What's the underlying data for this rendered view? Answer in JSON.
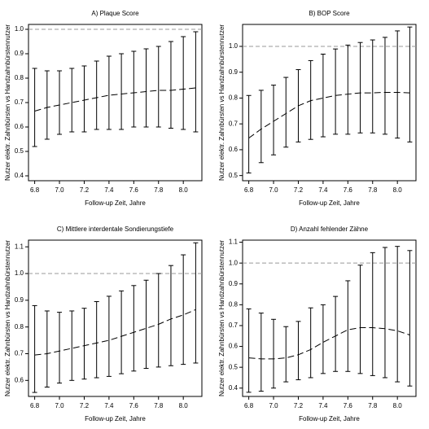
{
  "chart_data": [
    {
      "type": "line",
      "title": "A) Plaque Score",
      "xlabel": "Follow-up Zeit, Jahre",
      "ylabel": "Nutzer elektr. Zahnbürsten vs Handzahnbürstennutzer",
      "x": [
        6.8,
        6.9,
        7.0,
        7.1,
        7.2,
        7.3,
        7.4,
        7.5,
        7.6,
        7.7,
        7.8,
        7.9,
        8.0,
        8.1
      ],
      "values": [
        0.665,
        0.68,
        0.69,
        0.7,
        0.71,
        0.72,
        0.73,
        0.735,
        0.74,
        0.745,
        0.75,
        0.75,
        0.755,
        0.76
      ],
      "lower": [
        0.52,
        0.55,
        0.57,
        0.58,
        0.58,
        0.59,
        0.59,
        0.59,
        0.6,
        0.6,
        0.6,
        0.595,
        0.59,
        0.58
      ],
      "upper": [
        0.84,
        0.83,
        0.83,
        0.84,
        0.85,
        0.87,
        0.89,
        0.9,
        0.91,
        0.92,
        0.93,
        0.95,
        0.97,
        0.99
      ],
      "reference_line": 1,
      "color": "#000000",
      "xlim": [
        6.75,
        8.15
      ],
      "xticks": [
        6.8,
        {
          "value": 7,
          "label": "7.0"
        },
        7.2,
        7.4,
        7.6,
        7.8,
        {
          "value": 8,
          "label": "8.0"
        }
      ],
      "ylim": [
        0.38,
        1.02
      ],
      "yticks": [
        0.4,
        0.5,
        0.6,
        0.7,
        0.8,
        0.9,
        {
          "value": 1,
          "label": "1.0"
        }
      ]
    },
    {
      "type": "line",
      "title": "B) BOP Score",
      "xlabel": "Follow-up Zeit, Jahre",
      "ylabel": "Nutzer elektr. Zahnbürsten vs Handzahnbürstennutzer",
      "x": [
        6.8,
        6.9,
        7.0,
        7.1,
        7.2,
        7.3,
        7.4,
        7.5,
        7.6,
        7.7,
        7.8,
        7.9,
        8.0,
        8.1
      ],
      "values": [
        0.645,
        0.68,
        0.71,
        0.74,
        0.77,
        0.79,
        0.8,
        0.81,
        0.815,
        0.82,
        0.82,
        0.822,
        0.822,
        0.82
      ],
      "lower": [
        0.51,
        0.55,
        0.58,
        0.61,
        0.63,
        0.64,
        0.65,
        0.66,
        0.66,
        0.665,
        0.665,
        0.66,
        0.645,
        0.63
      ],
      "upper": [
        0.81,
        0.83,
        0.85,
        0.88,
        0.91,
        0.945,
        0.97,
        0.99,
        1.005,
        1.015,
        1.025,
        1.035,
        1.06,
        1.075
      ],
      "reference_line": 1,
      "color": "#000000",
      "xlim": [
        6.75,
        8.15
      ],
      "xticks": [
        6.8,
        {
          "value": 7,
          "label": "7.0"
        },
        7.2,
        7.4,
        7.6,
        7.8,
        {
          "value": 8,
          "label": "8.0"
        }
      ],
      "ylim": [
        0.48,
        1.085
      ],
      "yticks": [
        0.5,
        0.6,
        0.7,
        0.8,
        0.9,
        {
          "value": 1,
          "label": "1.0"
        }
      ]
    },
    {
      "type": "line",
      "title": "C) Mittlere interdentale Sondierungstiefe",
      "xlabel": "Follow-up Zeit, Jahre",
      "ylabel": "Nutzer elektr. Zahnbürsten vs Handzahnbürstennutzer",
      "x": [
        6.8,
        6.9,
        7.0,
        7.1,
        7.2,
        7.3,
        7.4,
        7.5,
        7.6,
        7.7,
        7.8,
        7.9,
        8.0,
        8.1
      ],
      "values": [
        0.695,
        0.7,
        0.71,
        0.72,
        0.73,
        0.74,
        0.75,
        0.765,
        0.78,
        0.795,
        0.81,
        0.83,
        0.845,
        0.865
      ],
      "lower": [
        0.555,
        0.575,
        0.59,
        0.6,
        0.605,
        0.61,
        0.615,
        0.625,
        0.635,
        0.645,
        0.65,
        0.655,
        0.66,
        0.665
      ],
      "upper": [
        0.88,
        0.86,
        0.855,
        0.86,
        0.87,
        0.895,
        0.915,
        0.935,
        0.955,
        0.975,
        1.0,
        1.03,
        1.07,
        1.115
      ],
      "reference_line": 1,
      "color": "#000000",
      "xlim": [
        6.75,
        8.15
      ],
      "xticks": [
        6.8,
        {
          "value": 7,
          "label": "7.0"
        },
        7.2,
        7.4,
        7.6,
        7.8,
        {
          "value": 8,
          "label": "8.0"
        }
      ],
      "ylim": [
        0.54,
        1.125
      ],
      "yticks": [
        0.6,
        0.7,
        0.8,
        0.9,
        {
          "value": 1,
          "label": "1.0"
        },
        1.1
      ]
    },
    {
      "type": "line",
      "title": "D) Anzahl fehlender Zähne",
      "xlabel": "Follow-up Zeit, Jahre",
      "ylabel": "Nutzer elektr. Zahnbürsten vs Handzahnbürstennutzer",
      "x": [
        6.8,
        6.9,
        7.0,
        7.1,
        7.2,
        7.3,
        7.4,
        7.5,
        7.6,
        7.7,
        7.8,
        7.9,
        8.0,
        8.1
      ],
      "values": [
        0.545,
        0.54,
        0.54,
        0.545,
        0.56,
        0.585,
        0.62,
        0.65,
        0.68,
        0.69,
        0.69,
        0.685,
        0.675,
        0.655
      ],
      "lower": [
        0.38,
        0.385,
        0.4,
        0.43,
        0.44,
        0.45,
        0.47,
        0.48,
        0.48,
        0.47,
        0.46,
        0.45,
        0.43,
        0.41
      ],
      "upper": [
        0.78,
        0.76,
        0.73,
        0.695,
        0.72,
        0.785,
        0.8,
        0.84,
        0.915,
        0.99,
        1.05,
        1.075,
        1.08,
        1.06
      ],
      "reference_line": 1,
      "color": "#000000",
      "xlim": [
        6.75,
        8.15
      ],
      "xticks": [
        6.8,
        {
          "value": 7,
          "label": "7.0"
        },
        7.2,
        7.4,
        7.6,
        7.8,
        {
          "value": 8,
          "label": "8.0"
        }
      ],
      "ylim": [
        0.36,
        1.11
      ],
      "yticks": [
        0.4,
        0.5,
        0.6,
        0.7,
        0.8,
        0.9,
        {
          "value": 1,
          "label": "1.0"
        },
        1.1
      ]
    }
  ]
}
